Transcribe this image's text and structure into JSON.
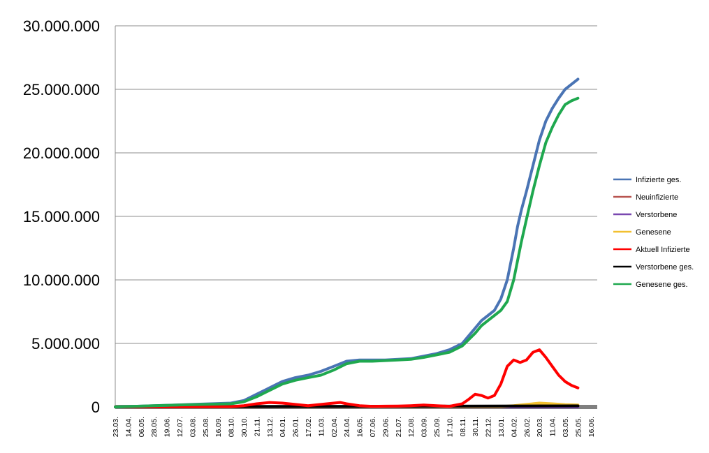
{
  "chart_data": {
    "type": "line",
    "title": "",
    "xlabel": "",
    "ylabel": "",
    "ylim": [
      0,
      30000000
    ],
    "y_ticks": [
      {
        "value": 0,
        "label": "0"
      },
      {
        "value": 5000000,
        "label": "5.000.000"
      },
      {
        "value": 10000000,
        "label": "10.000.000"
      },
      {
        "value": 15000000,
        "label": "15.000.000"
      },
      {
        "value": 20000000,
        "label": "20.000.000"
      },
      {
        "value": 25000000,
        "label": "25.000.000"
      },
      {
        "value": 30000000,
        "label": "30.000.000"
      }
    ],
    "x_ticks": [
      "23.03.",
      "14.04.",
      "06.05.",
      "28.05.",
      "19.06.",
      "12.07.",
      "03.08.",
      "25.08.",
      "16.09.",
      "08.10.",
      "30.10.",
      "21.11.",
      "13.12.",
      "04.01.",
      "26.01.",
      "17.02.",
      "11.03.",
      "02.04.",
      "24.04.",
      "16.05.",
      "07.06.",
      "29.06.",
      "21.07.",
      "12.08.",
      "03.09.",
      "25.09.",
      "17.10.",
      "08.11.",
      "30.11.",
      "22.12.",
      "13.01.",
      "04.02.",
      "26.02.",
      "20.03.",
      "11.04.",
      "03.05.",
      "25.05.",
      "16.06."
    ],
    "grid": true,
    "legend_position": "right",
    "series": [
      {
        "name": "Infizierte ges.",
        "color": "#4a74b4",
        "x": [
          0,
          3,
          6,
          9,
          10,
          11,
          12,
          13,
          14,
          15,
          16,
          17,
          18,
          19,
          20,
          21,
          22,
          23,
          24,
          25,
          26,
          27,
          28,
          28.5,
          29,
          29.5,
          30,
          30.5,
          31,
          31.3,
          31.6,
          32,
          32.5,
          33,
          33.5,
          34,
          34.5,
          35,
          35.5,
          36
        ],
        "values": [
          0,
          100000,
          200000,
          300000,
          500000,
          1000000,
          1500000,
          2000000,
          2300000,
          2500000,
          2800000,
          3200000,
          3600000,
          3700000,
          3700000,
          3700000,
          3750000,
          3800000,
          4000000,
          4200000,
          4500000,
          5000000,
          6200000,
          6800000,
          7200000,
          7600000,
          8500000,
          10000000,
          12500000,
          14200000,
          15500000,
          17000000,
          19000000,
          21000000,
          22500000,
          23500000,
          24300000,
          25000000,
          25400000,
          25800000
        ]
      },
      {
        "name": "Neuinfizierte",
        "color": "#b85450",
        "x": [
          0,
          30,
          31,
          32,
          33,
          34,
          35,
          36
        ],
        "values": [
          5000,
          20000,
          80000,
          150000,
          250000,
          150000,
          100000,
          80000
        ]
      },
      {
        "name": "Verstorbene",
        "color": "#7a48b0",
        "x": [
          0,
          36
        ],
        "values": [
          0,
          2000
        ]
      },
      {
        "name": "Genesene",
        "color": "#f2c030",
        "x": [
          0,
          30,
          31,
          32,
          33,
          34,
          35,
          36
        ],
        "values": [
          5000,
          30000,
          100000,
          200000,
          300000,
          250000,
          180000,
          150000
        ]
      },
      {
        "name": "Aktuell Infizierte",
        "color": "#ff0000",
        "x": [
          0,
          9,
          10,
          11,
          12,
          13,
          14,
          15,
          16,
          17,
          17.5,
          18,
          19,
          20,
          21,
          22,
          23,
          24,
          25,
          26,
          27,
          27.5,
          28,
          28.5,
          29,
          29.5,
          30,
          30.5,
          31,
          31.5,
          32,
          32.5,
          33,
          33.5,
          34,
          34.5,
          35,
          35.5,
          36
        ],
        "values": [
          0,
          30000,
          100000,
          250000,
          350000,
          300000,
          200000,
          100000,
          200000,
          300000,
          350000,
          250000,
          100000,
          50000,
          60000,
          70000,
          100000,
          150000,
          100000,
          50000,
          250000,
          600000,
          1000000,
          900000,
          700000,
          900000,
          1800000,
          3200000,
          3700000,
          3500000,
          3700000,
          4300000,
          4500000,
          3900000,
          3200000,
          2500000,
          2000000,
          1700000,
          1500000
        ]
      },
      {
        "name": "Verstorbene ges.",
        "color": "#000000",
        "x": [
          0,
          36
        ],
        "values": [
          0,
          80000
        ]
      },
      {
        "name": "Genesene ges.",
        "color": "#1fa84f",
        "x": [
          0,
          3,
          6,
          9,
          10,
          11,
          12,
          13,
          14,
          15,
          16,
          17,
          18,
          19,
          20,
          21,
          22,
          23,
          24,
          25,
          26,
          27,
          28,
          28.5,
          29,
          29.5,
          30,
          30.5,
          31,
          31.3,
          31.6,
          32,
          32.5,
          33,
          33.5,
          34,
          34.5,
          35,
          35.5,
          36
        ],
        "values": [
          0,
          100000,
          180000,
          250000,
          400000,
          800000,
          1300000,
          1800000,
          2100000,
          2300000,
          2500000,
          2900000,
          3400000,
          3600000,
          3600000,
          3650000,
          3700000,
          3750000,
          3900000,
          4100000,
          4300000,
          4800000,
          5800000,
          6400000,
          6800000,
          7200000,
          7600000,
          8300000,
          10000000,
          11500000,
          13000000,
          14800000,
          17000000,
          19000000,
          20800000,
          22000000,
          23000000,
          23800000,
          24100000,
          24300000
        ]
      }
    ]
  }
}
